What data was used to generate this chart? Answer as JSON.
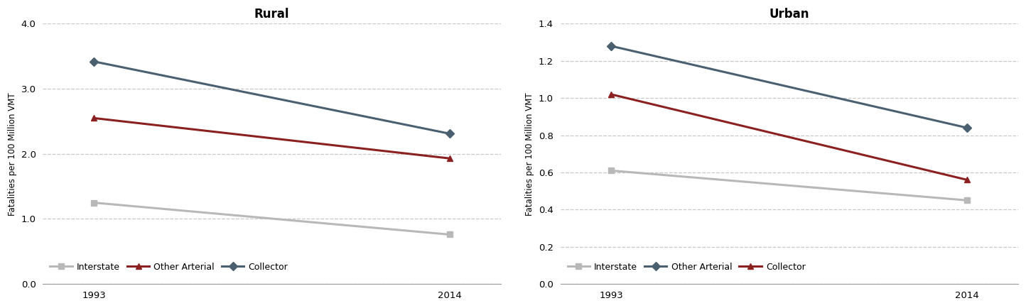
{
  "rural": {
    "title": "Rural",
    "years": [
      1993,
      2014
    ],
    "series": [
      {
        "label": "Interstate",
        "values": [
          1.25,
          0.76
        ],
        "color": "#b8b8b8",
        "marker": "s"
      },
      {
        "label": "Other Arterial",
        "values": [
          2.55,
          1.93
        ],
        "color": "#8b2020",
        "marker": "^"
      },
      {
        "label": "Collector",
        "values": [
          3.42,
          2.31
        ],
        "color": "#4a6070",
        "marker": "D"
      }
    ],
    "ylim": [
      0.0,
      4.0
    ],
    "yticks": [
      0.0,
      1.0,
      2.0,
      3.0,
      4.0
    ],
    "ylabel": "Fatalities per 100 Million VMT"
  },
  "urban": {
    "title": "Urban",
    "years": [
      1993,
      2014
    ],
    "series": [
      {
        "label": "Interstate",
        "values": [
          0.61,
          0.45
        ],
        "color": "#b8b8b8",
        "marker": "s"
      },
      {
        "label": "Other Arterial",
        "values": [
          1.28,
          0.84
        ],
        "color": "#4a6070",
        "marker": "D"
      },
      {
        "label": "Collector",
        "values": [
          1.02,
          0.56
        ],
        "color": "#8b2020",
        "marker": "^"
      }
    ],
    "ylim": [
      0.0,
      1.4
    ],
    "yticks": [
      0.0,
      0.2,
      0.4,
      0.6,
      0.8,
      1.0,
      1.2,
      1.4
    ],
    "ylabel": "Fatalities per 100 Million VMT"
  },
  "bg_color": "#ffffff",
  "plot_bg_color": "#ffffff",
  "line_width": 2.2,
  "marker_size": 6,
  "title_fontsize": 12,
  "label_fontsize": 8.5,
  "tick_fontsize": 9.5,
  "legend_fontsize": 9,
  "grid_color": "#c8c8c8"
}
